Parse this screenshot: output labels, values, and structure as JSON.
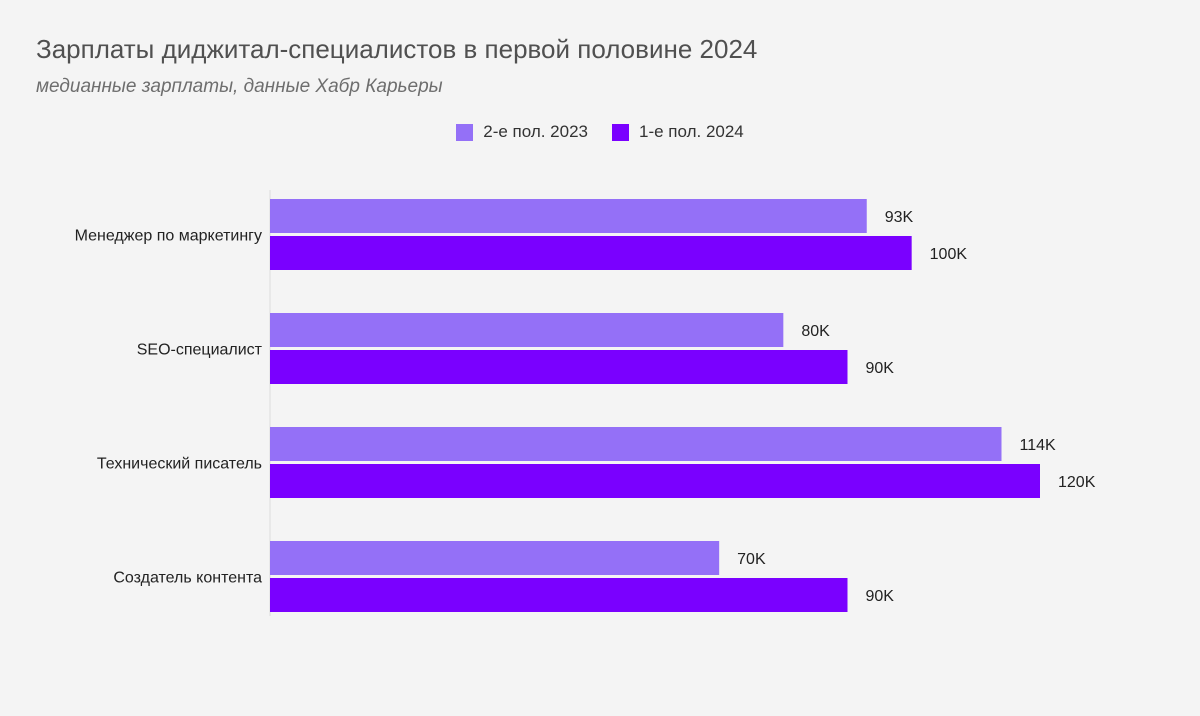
{
  "chart_data": {
    "type": "bar",
    "orientation": "horizontal",
    "title": "Зарплаты диджитал-специалистов в первой половине 2024",
    "subtitle": "медианные зарплаты, данные Хабр Карьеры",
    "categories": [
      "Менеджер по маркетингу",
      "SEO-специалист",
      "Технический писатель",
      "Создатель контента"
    ],
    "series": [
      {
        "name": "2-е пол. 2023",
        "color": "#9470f7",
        "values": [
          93,
          80,
          114,
          70
        ],
        "labels": [
          "93K",
          "80K",
          "114K",
          "70K"
        ]
      },
      {
        "name": "1-е пол. 2024",
        "color": "#7a00ff",
        "values": [
          100,
          90,
          120,
          90
        ],
        "labels": [
          "100K",
          "90K",
          "120K",
          "90K"
        ]
      }
    ],
    "xlim": [
      0,
      120
    ],
    "grid": false,
    "legend_position": "top-center"
  }
}
